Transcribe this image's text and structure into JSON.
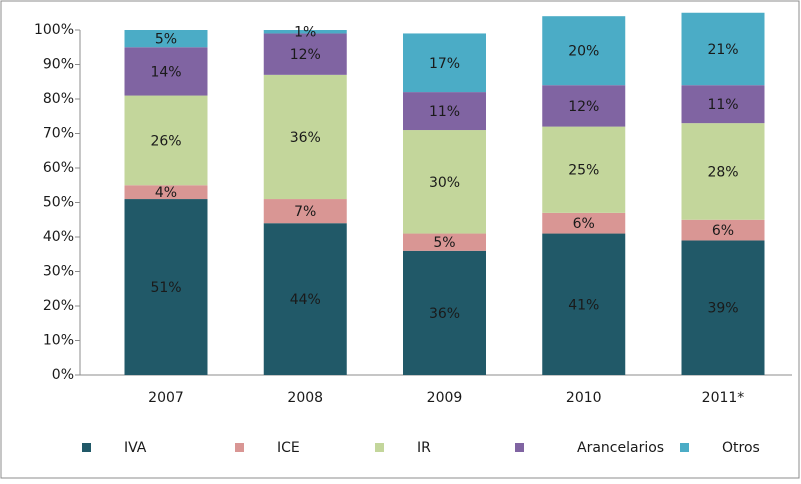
{
  "chart_data": {
    "type": "bar",
    "stacked": true,
    "categories": [
      "2007",
      "2008",
      "2009",
      "2010",
      "2011*"
    ],
    "series": [
      {
        "name": "IVA",
        "color": "#215968",
        "values": [
          51,
          44,
          36,
          41,
          39
        ],
        "value_labels": [
          "51%",
          "44%",
          "36%",
          "41%",
          "39%"
        ]
      },
      {
        "name": "ICE",
        "color": "#d99694",
        "values": [
          4,
          7,
          5,
          6,
          6
        ],
        "value_labels": [
          "4%",
          "7%",
          "5%",
          "6%",
          "6%"
        ]
      },
      {
        "name": "IR",
        "color": "#c3d69b",
        "values": [
          26,
          36,
          30,
          25,
          28
        ],
        "value_labels": [
          "26%",
          "36%",
          "30%",
          "25%",
          "28%"
        ]
      },
      {
        "name": "Arancelarios",
        "color": "#8064a2",
        "values": [
          14,
          12,
          11,
          12,
          11
        ],
        "value_labels": [
          "14%",
          "12%",
          "11%",
          "12%",
          "11%"
        ]
      },
      {
        "name": "Otros",
        "color": "#4bacc6",
        "values": [
          5,
          1,
          17,
          20,
          21
        ],
        "value_labels": [
          "5%",
          "1%",
          "17%",
          "20%",
          "21%"
        ]
      }
    ],
    "ylim": [
      0,
      100
    ],
    "yticks": [
      {
        "value": 0,
        "label": "0%"
      },
      {
        "value": 10,
        "label": "10%"
      },
      {
        "value": 20,
        "label": "20%"
      },
      {
        "value": 30,
        "label": "30%"
      },
      {
        "value": 40,
        "label": "40%"
      },
      {
        "value": 50,
        "label": "50%"
      },
      {
        "value": 60,
        "label": "60%"
      },
      {
        "value": 70,
        "label": "70%"
      },
      {
        "value": 80,
        "label": "80%"
      },
      {
        "value": 90,
        "label": "90%"
      },
      {
        "value": 100,
        "label": "100%"
      }
    ],
    "grid": false,
    "legend": "bottom"
  }
}
